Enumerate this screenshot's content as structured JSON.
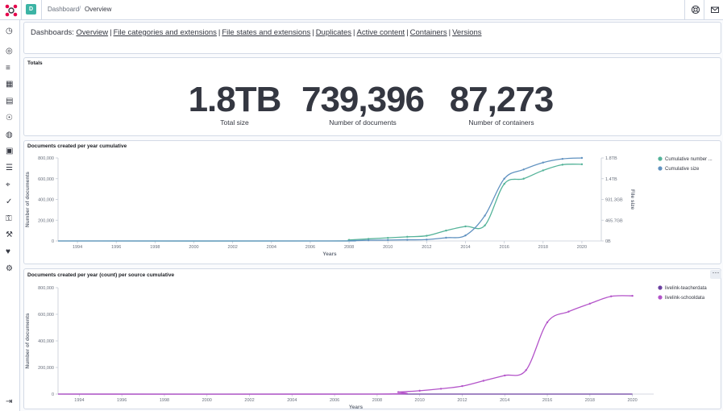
{
  "header": {
    "space_initial": "D",
    "breadcrumbs": [
      "Dashboard",
      "Overview"
    ],
    "icons": [
      "logo-icon",
      "help-icon",
      "mail-icon"
    ],
    "accent": "#e7004c"
  },
  "sidebar": {
    "items": [
      {
        "name": "clock-icon",
        "glyph": "◷"
      },
      {
        "name": "compass-icon",
        "glyph": "◎"
      },
      {
        "name": "visualize-icon",
        "glyph": "≡"
      },
      {
        "name": "dashboard-icon",
        "glyph": "▦"
      },
      {
        "name": "canvas-icon",
        "glyph": "▤"
      },
      {
        "name": "maps-icon",
        "glyph": "☉"
      },
      {
        "name": "ml-icon",
        "glyph": "◍"
      },
      {
        "name": "infra-icon",
        "glyph": "▣"
      },
      {
        "name": "logs-icon",
        "glyph": "☰"
      },
      {
        "name": "apm-icon",
        "glyph": "⌖"
      },
      {
        "name": "uptime-icon",
        "glyph": "✓"
      },
      {
        "name": "siem-icon",
        "glyph": "⚿"
      },
      {
        "name": "devtools-icon",
        "glyph": "⚒"
      },
      {
        "name": "monitoring-icon",
        "glyph": "♥"
      },
      {
        "name": "management-icon",
        "glyph": "⚙"
      }
    ],
    "collapse_icon": "⇥"
  },
  "dashboards": {
    "label": "Dashboards:",
    "links": [
      "Overview",
      "File categories and extensions",
      "File states and extensions",
      "Duplicates",
      "Active content",
      "Containers",
      "Versions"
    ]
  },
  "totals": {
    "title": "Totals",
    "metrics": [
      {
        "value": "1.8TB",
        "label": "Total size"
      },
      {
        "value": "739,396",
        "label": "Number of documents"
      },
      {
        "value": "87,273",
        "label": "Number of containers"
      }
    ]
  },
  "chart_data": [
    {
      "type": "line",
      "title": "Documents created per year cumulative",
      "xlabel": "Years",
      "ylabel": "Number of documents",
      "y2label": "File size",
      "xlim": [
        1993,
        2021
      ],
      "x_ticks": [
        1994,
        1996,
        1998,
        2000,
        2002,
        2004,
        2006,
        2008,
        2010,
        2012,
        2014,
        2016,
        2018,
        2020
      ],
      "ylim": [
        0,
        800000
      ],
      "y_ticks": [
        "800,000",
        "600,000",
        "400,000",
        "200,000",
        "0"
      ],
      "y2_ticks": [
        "1.8TB",
        "1.4TB",
        "931.3GB",
        "465.7GB",
        "0B"
      ],
      "legend_position": "right",
      "series": [
        {
          "name": "Cumulative number ...",
          "color": "#54b399",
          "x": [
            1993,
            2007,
            2008,
            2009,
            2010,
            2011,
            2012,
            2013,
            2014,
            2015,
            2016,
            2017,
            2018,
            2019,
            2020
          ],
          "values": [
            0,
            0,
            10000,
            20000,
            30000,
            40000,
            50000,
            100000,
            140000,
            150000,
            550000,
            600000,
            680000,
            735000,
            739000
          ]
        },
        {
          "name": "Cumulative size",
          "color": "#6092c0",
          "x": [
            1993,
            2007,
            2008,
            2009,
            2010,
            2011,
            2012,
            2013,
            2014,
            2015,
            2016,
            2017,
            2018,
            2019,
            2020
          ],
          "values": [
            0,
            0,
            0.005,
            0.015,
            0.02,
            0.025,
            0.03,
            0.07,
            0.12,
            0.55,
            1.35,
            1.55,
            1.7,
            1.78,
            1.8
          ]
        }
      ]
    },
    {
      "type": "line",
      "title": "Documents created per year (count) per source cumulative",
      "xlabel": "Years",
      "ylabel": "Number of documents",
      "xlim": [
        1993,
        2021
      ],
      "x_ticks": [
        1994,
        1996,
        1998,
        2000,
        2002,
        2004,
        2006,
        2008,
        2010,
        2012,
        2014,
        2016,
        2018,
        2020
      ],
      "ylim": [
        0,
        800000
      ],
      "y_ticks": [
        "800,000",
        "600,000",
        "400,000",
        "200,000",
        "0"
      ],
      "legend_position": "right",
      "series": [
        {
          "name": "livelink-teacherdata",
          "color": "#6b3fa0",
          "x": [
            1993,
            2020
          ],
          "values": [
            0,
            0
          ]
        },
        {
          "name": "livelink-schooldata",
          "color": "#b353c9",
          "x": [
            1993,
            2008,
            2009,
            2010,
            2011,
            2012,
            2013,
            2014,
            2015,
            2016,
            2017,
            2018,
            2019,
            2020
          ],
          "values": [
            0,
            0,
            15000,
            25000,
            40000,
            60000,
            100000,
            140000,
            180000,
            540000,
            620000,
            680000,
            735000,
            739000
          ]
        }
      ]
    }
  ]
}
